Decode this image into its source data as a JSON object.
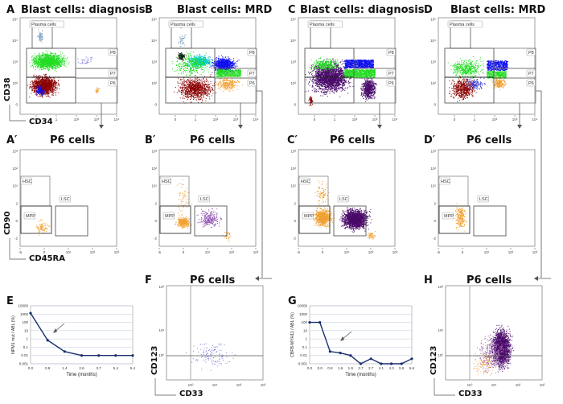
{
  "figure": {
    "panels": [
      {
        "id": "A",
        "letter": "A",
        "title": "Blast cells: diagnosis",
        "ylabel": "CD38",
        "xlabel": "CD34",
        "gates": [
          "Plasma cells",
          "P8",
          "P7",
          "P6"
        ]
      },
      {
        "id": "B",
        "letter": "B",
        "title": "Blast cells: MRD",
        "gates": [
          "Plasma cells",
          "P8",
          "P7",
          "P6"
        ]
      },
      {
        "id": "C",
        "letter": "C",
        "title": "Blast cells: diagnosis",
        "gates": [
          "Plasma cells",
          "P8",
          "P7",
          "P6"
        ]
      },
      {
        "id": "D",
        "letter": "D",
        "title": "Blast cells: MRD",
        "gates": [
          "Plasma cells",
          "P8",
          "P7",
          "P6"
        ]
      },
      {
        "id": "A2",
        "letter": "A′",
        "title": "P6 cells",
        "ylabel": "CD90",
        "xlabel": "CD45RA",
        "gates": [
          "HSC",
          "LSC",
          "MPP"
        ]
      },
      {
        "id": "B2",
        "letter": "B′",
        "title": "P6 cells",
        "gates": [
          "HSC",
          "LSC",
          "MPP"
        ]
      },
      {
        "id": "C2",
        "letter": "C′",
        "title": "P6 cells",
        "gates": [
          "HSC",
          "LSC",
          "MPP"
        ]
      },
      {
        "id": "D2",
        "letter": "D′",
        "title": "P6 cells",
        "gates": [
          "HSC",
          "LSC",
          "MPP"
        ]
      },
      {
        "id": "E",
        "letter": "E"
      },
      {
        "id": "F",
        "letter": "F",
        "title": "P6 cells",
        "ylabel": "CD123",
        "xlabel": "CD33"
      },
      {
        "id": "G",
        "letter": "G"
      },
      {
        "id": "H",
        "letter": "H",
        "title": "P6 cells",
        "ylabel": "CD123",
        "xlabel": "CD33"
      }
    ],
    "flow_ticks": {
      "cd34_x": [
        "0",
        "1",
        "10²",
        "10³",
        "10⁴"
      ],
      "cd38_y": [
        "0",
        "10²",
        "10³",
        "10⁴",
        "10⁵"
      ],
      "cd45ra_x": [
        "-5",
        "0",
        "10¹",
        "10²",
        "10³"
      ],
      "cd90_y": [
        "-2",
        "0",
        "2",
        "10¹",
        "10²",
        "10³"
      ],
      "cd33_x": [
        "10⁰",
        "10¹",
        "10²",
        "10³"
      ],
      "cd123_y": [
        "10⁰",
        "10¹",
        "10³"
      ]
    },
    "colors": {
      "green": "#22dd22",
      "darkred": "#8b0000",
      "blue": "#1010ee",
      "cyan": "#00cccc",
      "orange": "#f0a030",
      "purple": "#4a0a6a",
      "black": "#111111",
      "plasma": "#7aa0c0",
      "line": "#1a2f6e"
    }
  },
  "chart_data": [
    {
      "panel": "E",
      "type": "line",
      "ylabel": "NPM1 mut / ABL (%)",
      "xlabel": "Time (months)",
      "x": [
        "0.0",
        "0.9",
        "1.4",
        "2.6",
        "3.7",
        "5.4",
        "5.4"
      ],
      "values": [
        1300,
        0.7,
        0.03,
        0.01,
        0.01,
        0.01,
        0.01
      ],
      "yscale": "log",
      "ylim": [
        0.001,
        10000
      ],
      "yticks": [
        "0.001",
        "0.01",
        "0.1",
        "1",
        "10",
        "100",
        "1000",
        "10000"
      ],
      "grid": true,
      "annotation": "arrow"
    },
    {
      "panel": "G",
      "type": "line",
      "ylabel": "CBFB-MYH11 / ABL (%)",
      "xlabel": "Time (months)",
      "x": [
        "0.0",
        "0.0",
        "0.9",
        "1.6",
        "1.9",
        "2.7",
        "2.7",
        "4.1",
        "4.3",
        "5.6",
        "5.6"
      ],
      "values": [
        100,
        100,
        0.03,
        0.02,
        0.01,
        0.001,
        0.004,
        0.001,
        0.001,
        0.001,
        0.004
      ],
      "yscale": "log",
      "ylim": [
        0.001,
        10000
      ],
      "yticks": [
        "0.001",
        "0.01",
        "0.1",
        "1",
        "10",
        "100",
        "1000",
        "10000"
      ],
      "grid": true,
      "annotation": "arrow"
    }
  ]
}
